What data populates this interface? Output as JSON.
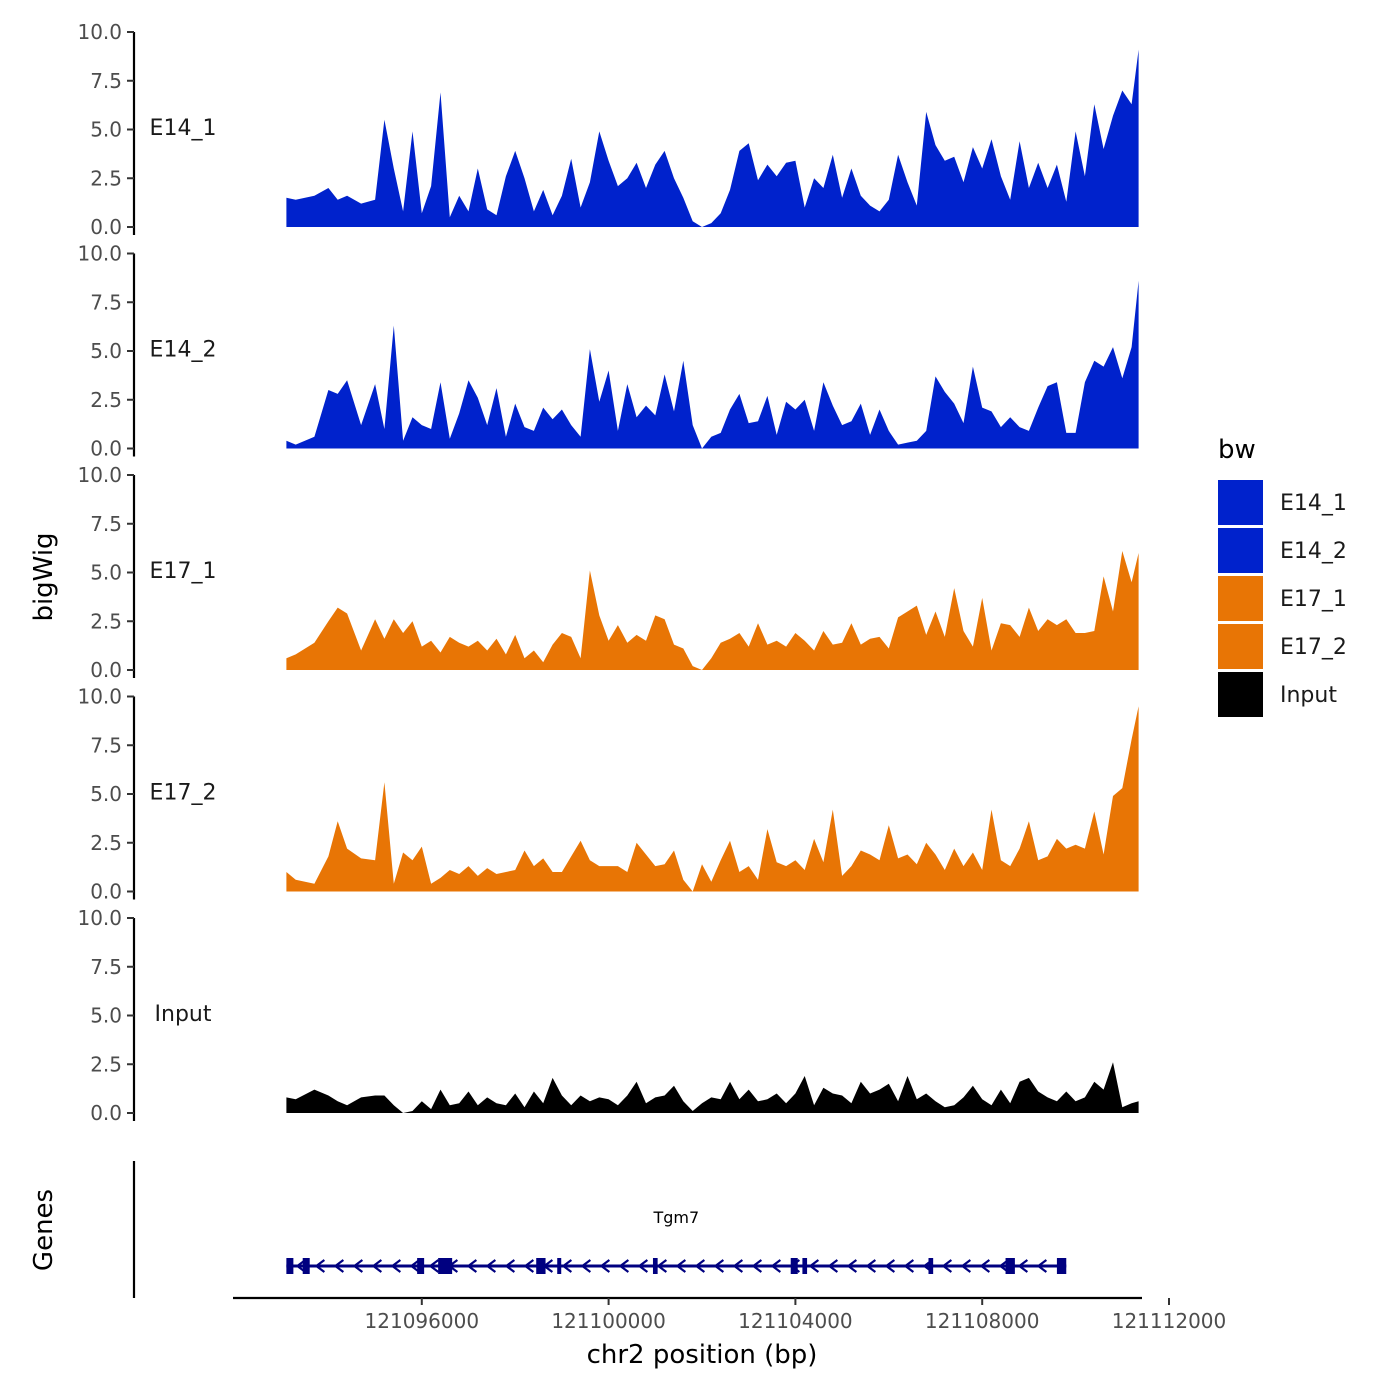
{
  "chart_data": {
    "type": "area",
    "y_axis_title": "bigWig",
    "x_axis_title": "chr2 position (bp)",
    "genes_axis_title": "Genes",
    "xlim": [
      121092000,
      121112000
    ],
    "x_ticks": [
      121096000,
      121100000,
      121104000,
      121108000,
      121112000
    ],
    "x_tick_labels": [
      "121096000",
      "121100000",
      "121104000",
      "121108000",
      "121112000"
    ],
    "ylim": [
      0,
      10
    ],
    "y_ticks": [
      0,
      2.5,
      5,
      7.5,
      10
    ],
    "y_tick_labels": [
      "0.0",
      "2.5",
      "5.0",
      "7.5",
      "10.0"
    ],
    "legend": {
      "title": "bw",
      "entries": [
        {
          "label": "E14_1",
          "color": "#0022CC"
        },
        {
          "label": "E14_2",
          "color": "#0022CC"
        },
        {
          "label": "E17_1",
          "color": "#E87505"
        },
        {
          "label": "E17_2",
          "color": "#E87505"
        },
        {
          "label": "Input",
          "color": "#000000"
        }
      ]
    },
    "tracks": [
      {
        "name": "E14_1",
        "label": "E14_1",
        "color": "#0022CC",
        "x": [
          121093100,
          121093300,
          121093700,
          121094000,
          121094200,
          121094400,
          121094700,
          121095000,
          121095200,
          121095400,
          121095600,
          121095800,
          121096000,
          121096200,
          121096400,
          121096600,
          121096800,
          121097000,
          121097200,
          121097400,
          121097600,
          121097800,
          121098000,
          121098200,
          121098400,
          121098600,
          121098800,
          121099000,
          121099200,
          121099400,
          121099600,
          121099800,
          121100000,
          121100200,
          121100400,
          121100600,
          121100800,
          121101000,
          121101200,
          121101400,
          121101600,
          121101800,
          121102000,
          121102200,
          121102400,
          121102600,
          121102800,
          121103000,
          121103200,
          121103400,
          121103600,
          121103800,
          121104000,
          121104200,
          121104400,
          121104600,
          121104800,
          121105000,
          121105200,
          121105400,
          121105600,
          121105800,
          121106000,
          121106200,
          121106400,
          121106600,
          121106800,
          121107000,
          121107200,
          121107400,
          121107600,
          121107800,
          121108000,
          121108200,
          121108400,
          121108600,
          121108800,
          121109000,
          121109200,
          121109400,
          121109600,
          121109800,
          121110000,
          121110200,
          121110400,
          121110600,
          121110800,
          121111000,
          121111200,
          121111350
        ],
        "y": [
          1.5,
          1.4,
          1.6,
          2.0,
          1.4,
          1.6,
          1.2,
          1.4,
          5.5,
          3.0,
          0.8,
          4.9,
          0.7,
          2.1,
          6.9,
          0.5,
          1.6,
          0.8,
          3.0,
          0.9,
          0.6,
          2.6,
          3.9,
          2.5,
          0.8,
          1.9,
          0.6,
          1.6,
          3.5,
          1.0,
          2.3,
          4.9,
          3.4,
          2.1,
          2.5,
          3.3,
          2.0,
          3.2,
          3.9,
          2.5,
          1.5,
          0.3,
          0,
          0.2,
          0.7,
          1.9,
          3.9,
          4.3,
          2.4,
          3.2,
          2.6,
          3.3,
          3.4,
          1.0,
          2.5,
          2.0,
          3.7,
          1.5,
          3.0,
          1.6,
          1.1,
          0.8,
          1.4,
          3.7,
          2.3,
          1.1,
          5.9,
          4.2,
          3.4,
          3.6,
          2.3,
          4.1,
          3.0,
          4.5,
          2.6,
          1.4,
          4.4,
          2.0,
          3.3,
          2.0,
          3.2,
          1.3,
          4.9,
          2.6,
          6.3,
          4.0,
          5.7,
          7.0,
          6.3,
          9.1
        ]
      },
      {
        "name": "E14_2",
        "label": "E14_2",
        "color": "#0022CC",
        "x": [
          121093100,
          121093300,
          121093700,
          121094000,
          121094200,
          121094400,
          121094700,
          121095000,
          121095200,
          121095400,
          121095600,
          121095800,
          121096000,
          121096200,
          121096400,
          121096600,
          121096800,
          121097000,
          121097200,
          121097400,
          121097600,
          121097800,
          121098000,
          121098200,
          121098400,
          121098600,
          121098800,
          121099000,
          121099200,
          121099400,
          121099600,
          121099800,
          121100000,
          121100200,
          121100400,
          121100600,
          121100800,
          121101000,
          121101200,
          121101400,
          121101600,
          121101800,
          121102000,
          121102200,
          121102400,
          121102600,
          121102800,
          121103000,
          121103200,
          121103400,
          121103600,
          121103800,
          121104000,
          121104200,
          121104400,
          121104600,
          121104800,
          121105000,
          121105200,
          121105400,
          121105600,
          121105800,
          121106000,
          121106200,
          121106400,
          121106600,
          121106800,
          121107000,
          121107200,
          121107400,
          121107600,
          121107800,
          121108000,
          121108200,
          121108400,
          121108600,
          121108800,
          121109000,
          121109200,
          121109400,
          121109600,
          121109800,
          121110000,
          121110200,
          121110400,
          121110600,
          121110800,
          121111000,
          121111200,
          121111350
        ],
        "y": [
          0.4,
          0.2,
          0.6,
          3.0,
          2.8,
          3.5,
          1.2,
          3.3,
          1.0,
          6.3,
          0.4,
          1.6,
          1.2,
          1.0,
          3.4,
          0.5,
          1.8,
          3.5,
          2.6,
          1.2,
          3.1,
          0.6,
          2.3,
          1.1,
          0.9,
          2.1,
          1.5,
          2.0,
          1.2,
          0.6,
          5.1,
          2.4,
          4.0,
          0.9,
          3.3,
          1.6,
          2.2,
          1.7,
          3.8,
          1.9,
          4.5,
          1.2,
          0,
          0.6,
          0.8,
          2.0,
          2.8,
          1.3,
          1.4,
          2.7,
          0.7,
          2.4,
          2.0,
          2.5,
          0.9,
          3.4,
          2.2,
          1.2,
          1.4,
          2.3,
          0.7,
          2.0,
          0.9,
          0.2,
          0.3,
          0.4,
          0.9,
          3.7,
          2.9,
          2.3,
          1.3,
          4.2,
          2.1,
          1.9,
          1.1,
          1.6,
          1.1,
          0.9,
          2.1,
          3.2,
          3.4,
          0.8,
          0.8,
          3.4,
          4.5,
          4.2,
          5.2,
          3.6,
          5.2,
          8.6
        ]
      },
      {
        "name": "E17_1",
        "label": "E17_1",
        "color": "#E87505",
        "x": [
          121093100,
          121093300,
          121093700,
          121094000,
          121094200,
          121094400,
          121094700,
          121095000,
          121095200,
          121095400,
          121095600,
          121095800,
          121096000,
          121096200,
          121096400,
          121096600,
          121096800,
          121097000,
          121097200,
          121097400,
          121097600,
          121097800,
          121098000,
          121098200,
          121098400,
          121098600,
          121098800,
          121099000,
          121099200,
          121099400,
          121099600,
          121099800,
          121100000,
          121100200,
          121100400,
          121100600,
          121100800,
          121101000,
          121101200,
          121101400,
          121101600,
          121101800,
          121102000,
          121102200,
          121102400,
          121102600,
          121102800,
          121103000,
          121103200,
          121103400,
          121103600,
          121103800,
          121104000,
          121104200,
          121104400,
          121104600,
          121104800,
          121105000,
          121105200,
          121105400,
          121105600,
          121105800,
          121106000,
          121106200,
          121106400,
          121106600,
          121106800,
          121107000,
          121107200,
          121107400,
          121107600,
          121107800,
          121108000,
          121108200,
          121108400,
          121108600,
          121108800,
          121109000,
          121109200,
          121109400,
          121109600,
          121109800,
          121110000,
          121110200,
          121110400,
          121110600,
          121110800,
          121111000,
          121111200,
          121111350
        ],
        "y": [
          0.6,
          0.8,
          1.4,
          2.5,
          3.2,
          2.9,
          1.0,
          2.6,
          1.6,
          2.6,
          1.9,
          2.5,
          1.2,
          1.5,
          0.9,
          1.7,
          1.4,
          1.2,
          1.5,
          1.0,
          1.6,
          0.8,
          1.8,
          0.6,
          1.0,
          0.4,
          1.3,
          1.9,
          1.7,
          0.6,
          5.1,
          2.8,
          1.5,
          2.3,
          1.4,
          1.8,
          1.5,
          2.8,
          2.6,
          1.3,
          1.1,
          0.2,
          0,
          0.6,
          1.4,
          1.6,
          1.9,
          1.2,
          2.4,
          1.3,
          1.5,
          1.2,
          1.9,
          1.5,
          1.0,
          2.0,
          1.3,
          1.4,
          2.4,
          1.3,
          1.6,
          1.7,
          1.1,
          2.7,
          3.0,
          3.3,
          1.8,
          3.0,
          1.7,
          4.2,
          2.0,
          1.2,
          3.7,
          1.0,
          2.4,
          2.3,
          1.7,
          3.2,
          2.0,
          2.6,
          2.3,
          2.6,
          1.9,
          1.9,
          2.0,
          4.8,
          3.0,
          6.1,
          4.5,
          6.0
        ]
      },
      {
        "name": "E17_2",
        "label": "E17_2",
        "color": "#E87505",
        "x": [
          121093100,
          121093300,
          121093700,
          121094000,
          121094200,
          121094400,
          121094700,
          121095000,
          121095200,
          121095400,
          121095600,
          121095800,
          121096000,
          121096200,
          121096400,
          121096600,
          121096800,
          121097000,
          121097200,
          121097400,
          121097600,
          121097800,
          121098000,
          121098200,
          121098400,
          121098600,
          121098800,
          121099000,
          121099200,
          121099400,
          121099600,
          121099800,
          121100000,
          121100200,
          121100400,
          121100600,
          121100800,
          121101000,
          121101200,
          121101400,
          121101600,
          121101800,
          121102000,
          121102200,
          121102400,
          121102600,
          121102800,
          121103000,
          121103200,
          121103400,
          121103600,
          121103800,
          121104000,
          121104200,
          121104400,
          121104600,
          121104800,
          121105000,
          121105200,
          121105400,
          121105600,
          121105800,
          121106000,
          121106200,
          121106400,
          121106600,
          121106800,
          121107000,
          121107200,
          121107400,
          121107600,
          121107800,
          121108000,
          121108200,
          121108400,
          121108600,
          121108800,
          121109000,
          121109200,
          121109400,
          121109600,
          121109800,
          121110000,
          121110200,
          121110400,
          121110600,
          121110800,
          121111000,
          121111200,
          121111350
        ],
        "y": [
          1.0,
          0.6,
          0.4,
          1.8,
          3.6,
          2.2,
          1.7,
          1.6,
          5.6,
          0.4,
          2.0,
          1.6,
          2.3,
          0.4,
          0.7,
          1.1,
          0.9,
          1.3,
          0.8,
          1.2,
          0.9,
          1.0,
          1.1,
          2.1,
          1.3,
          1.7,
          1.0,
          1.0,
          1.8,
          2.6,
          1.6,
          1.3,
          1.3,
          1.3,
          1.0,
          2.5,
          1.9,
          1.3,
          1.4,
          2.1,
          0.6,
          0.0,
          1.4,
          0.5,
          1.6,
          2.6,
          1.0,
          1.3,
          0.6,
          3.2,
          1.5,
          1.3,
          1.6,
          1.1,
          2.7,
          1.5,
          4.2,
          0.8,
          1.3,
          2.1,
          1.9,
          1.6,
          3.4,
          1.7,
          1.9,
          1.4,
          2.5,
          1.9,
          1.1,
          2.2,
          1.3,
          2.0,
          1.1,
          4.2,
          1.6,
          1.3,
          2.2,
          3.6,
          1.6,
          1.8,
          2.7,
          2.2,
          2.4,
          2.2,
          4.1,
          1.9,
          4.9,
          5.3,
          7.8,
          9.5
        ]
      },
      {
        "name": "Input",
        "label": "Input",
        "color": "#000000",
        "x": [
          121093100,
          121093300,
          121093700,
          121094000,
          121094200,
          121094400,
          121094700,
          121095000,
          121095200,
          121095400,
          121095600,
          121095800,
          121096000,
          121096200,
          121096400,
          121096600,
          121096800,
          121097000,
          121097200,
          121097400,
          121097600,
          121097800,
          121098000,
          121098200,
          121098400,
          121098600,
          121098800,
          121099000,
          121099200,
          121099400,
          121099600,
          121099800,
          121100000,
          121100200,
          121100400,
          121100600,
          121100800,
          121101000,
          121101200,
          121101400,
          121101600,
          121101800,
          121102000,
          121102200,
          121102400,
          121102600,
          121102800,
          121103000,
          121103200,
          121103400,
          121103600,
          121103800,
          121104000,
          121104200,
          121104400,
          121104600,
          121104800,
          121105000,
          121105200,
          121105400,
          121105600,
          121105800,
          121106000,
          121106200,
          121106400,
          121106600,
          121106800,
          121107000,
          121107200,
          121107400,
          121107600,
          121107800,
          121108000,
          121108200,
          121108400,
          121108600,
          121108800,
          121109000,
          121109200,
          121109400,
          121109600,
          121109800,
          121110000,
          121110200,
          121110400,
          121110600,
          121110800,
          121111000,
          121111200,
          121111350
        ],
        "y": [
          0.8,
          0.7,
          1.2,
          0.9,
          0.6,
          0.4,
          0.8,
          0.9,
          0.9,
          0.4,
          0.0,
          0.1,
          0.6,
          0.2,
          1.2,
          0.4,
          0.5,
          1.1,
          0.4,
          0.8,
          0.5,
          0.4,
          1.0,
          0.3,
          1.1,
          0.5,
          1.8,
          0.9,
          0.4,
          0.9,
          0.6,
          0.8,
          0.7,
          0.4,
          0.9,
          1.6,
          0.5,
          0.8,
          0.9,
          1.4,
          0.6,
          0.1,
          0.5,
          0.8,
          0.7,
          1.6,
          0.7,
          1.2,
          0.6,
          0.7,
          1.0,
          0.5,
          1.0,
          1.9,
          0.4,
          1.3,
          1.0,
          0.9,
          0.5,
          1.6,
          1.0,
          1.2,
          1.5,
          0.6,
          1.9,
          0.7,
          1.0,
          0.6,
          0.3,
          0.4,
          0.8,
          1.4,
          0.7,
          0.4,
          1.2,
          0.5,
          1.6,
          1.8,
          1.1,
          0.8,
          0.6,
          1.1,
          0.6,
          0.8,
          1.6,
          1.2,
          2.6,
          0.3,
          0.5,
          0.6
        ]
      }
    ],
    "genes": [
      {
        "name": "Tgm7",
        "strand": "-",
        "start": 121093100,
        "end": 121109800,
        "exons": [
          [
            121093100,
            121093250
          ],
          [
            121093450,
            121093600
          ],
          [
            121095900,
            121096050
          ],
          [
            121096350,
            121096650
          ],
          [
            121098450,
            121098650
          ],
          [
            121098900,
            121098950
          ],
          [
            121100950,
            121101050
          ],
          [
            121103900,
            121104050
          ],
          [
            121104150,
            121104250
          ],
          [
            121106850,
            121106950
          ],
          [
            121108500,
            121108700
          ],
          [
            121109600,
            121109800
          ]
        ]
      }
    ]
  }
}
